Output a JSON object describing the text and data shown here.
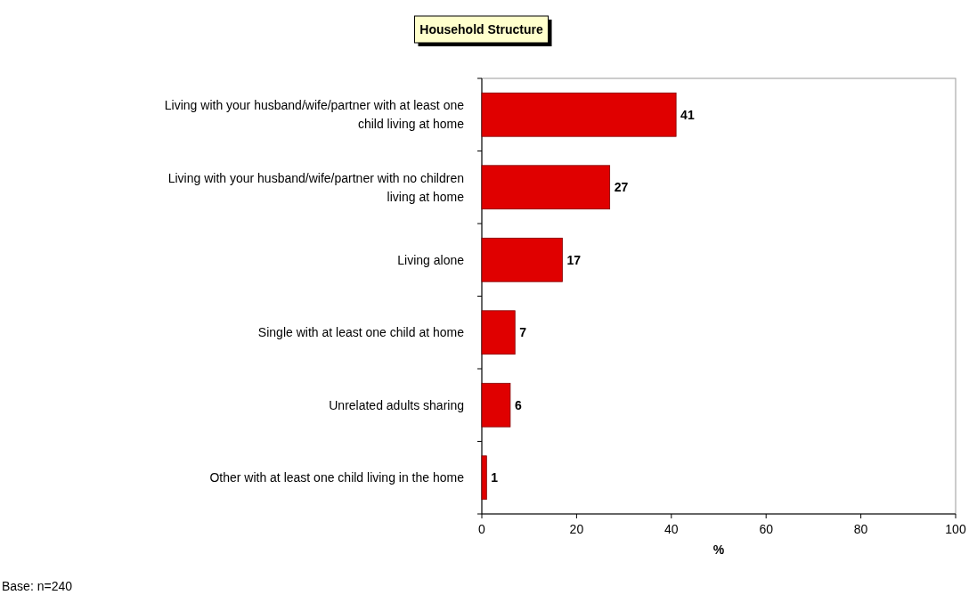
{
  "chart_data": {
    "type": "bar",
    "orientation": "horizontal",
    "title": "Household Structure",
    "xlabel": "%",
    "categories": [
      "Living with your husband/wife/partner with at least one child living at home",
      "Living with your husband/wife/partner with no children living at home",
      "Living alone",
      "Single with at least one child at home",
      "Unrelated adults sharing",
      "Other with at least one child living in the home"
    ],
    "values": [
      41,
      27,
      17,
      7,
      6,
      1
    ],
    "color": "#e00000",
    "xlim": [
      0,
      100
    ],
    "xticks": [
      0,
      20,
      40,
      60,
      80,
      100
    ],
    "grid": false,
    "data_labels": true,
    "annotations": [
      "Base: n=240"
    ]
  }
}
